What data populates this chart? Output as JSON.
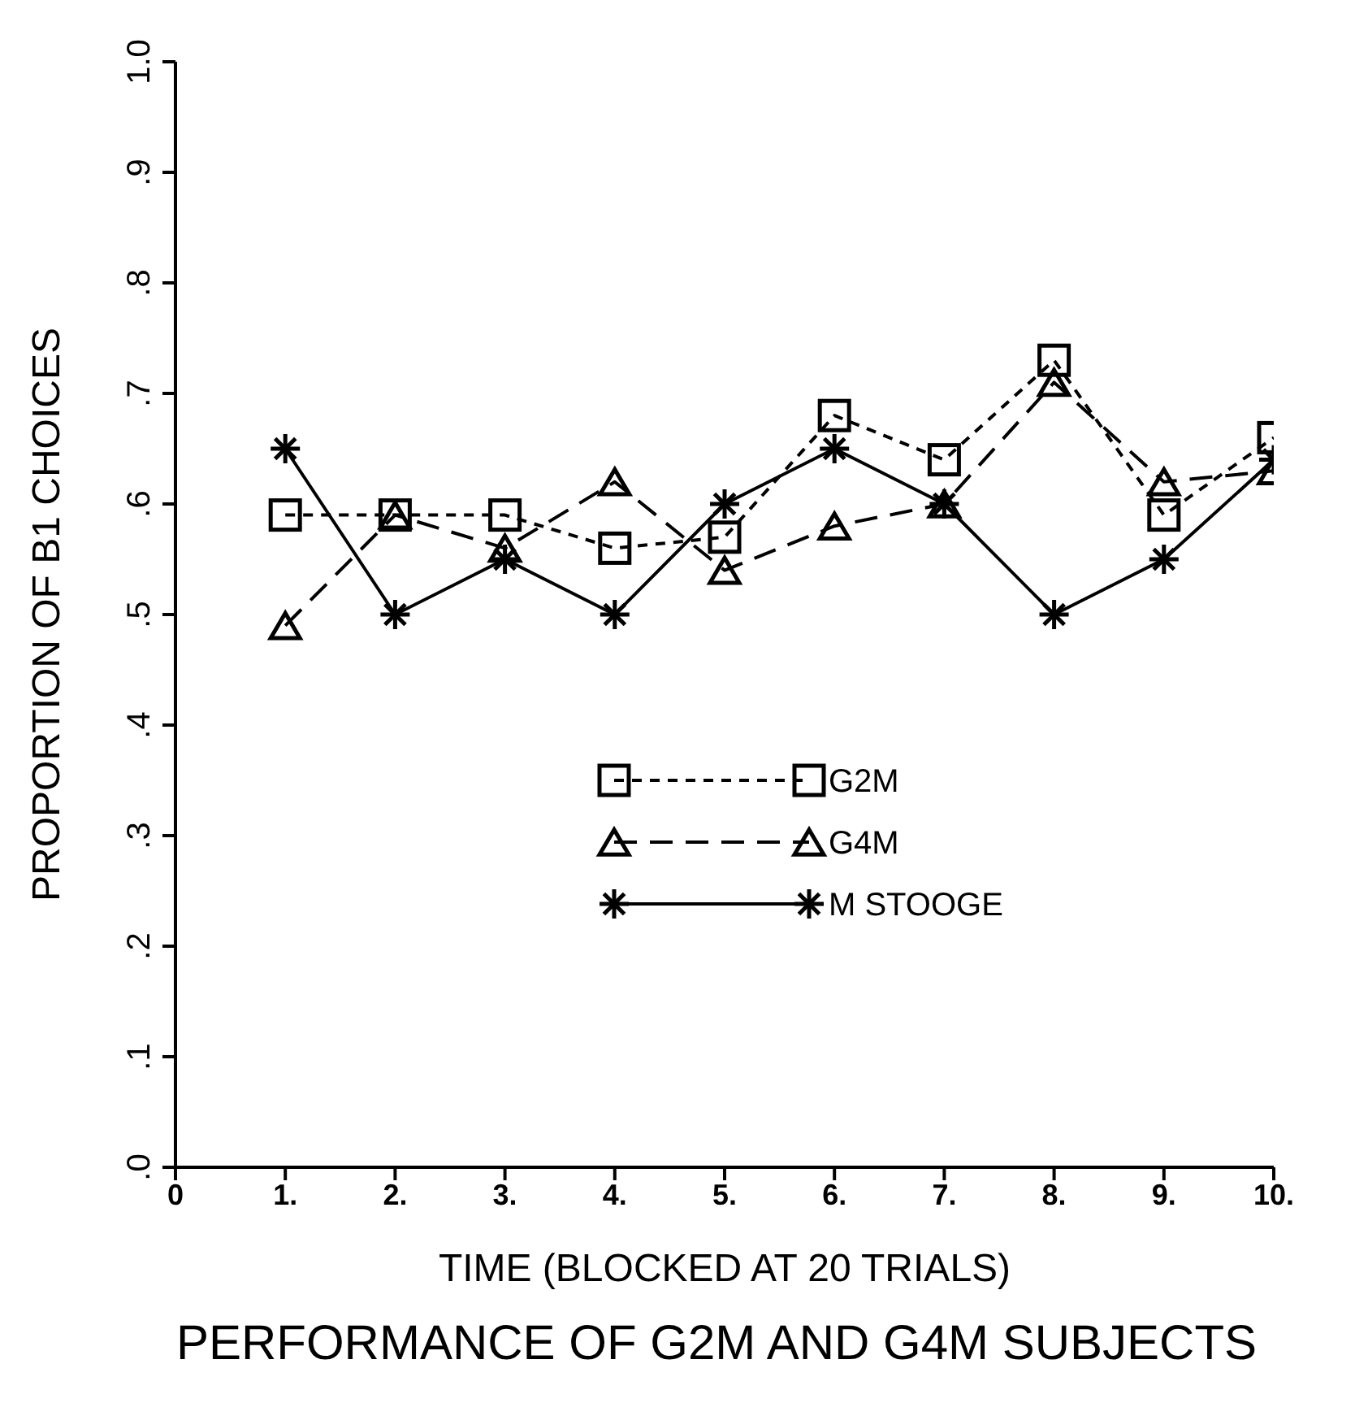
{
  "chart_data": {
    "type": "line",
    "title": "PERFORMANCE OF G2M AND G4M SUBJECTS",
    "xlabel": "TIME (BLOCKED AT 20 TRIALS)",
    "ylabel": "PROPORTION OF B1 CHOICES",
    "x": [
      1,
      2,
      3,
      4,
      5,
      6,
      7,
      8,
      9,
      10
    ],
    "series": [
      {
        "name": "G2M",
        "color": "#000000",
        "marker": "square",
        "line_style": "dotted",
        "values": [
          0.59,
          0.59,
          0.59,
          0.56,
          0.57,
          0.68,
          0.64,
          0.73,
          0.59,
          0.66
        ]
      },
      {
        "name": "G4M",
        "color": "#000000",
        "marker": "triangle",
        "line_style": "dashed",
        "values": [
          0.49,
          0.59,
          0.56,
          0.62,
          0.54,
          0.58,
          0.6,
          0.71,
          0.62,
          0.63
        ]
      },
      {
        "name": "M STOOGE",
        "color": "#000000",
        "marker": "cross",
        "line_style": "solid",
        "values": [
          0.65,
          0.5,
          0.55,
          0.5,
          0.6,
          0.65,
          0.6,
          0.5,
          0.55,
          0.64
        ]
      }
    ],
    "xlim": [
      0,
      10
    ],
    "xticks": [
      0,
      {
        "value": 1,
        "label": "1."
      },
      {
        "value": 2,
        "label": "2."
      },
      {
        "value": 3,
        "label": "3."
      },
      {
        "value": 4,
        "label": "4."
      },
      {
        "value": 5,
        "label": "5."
      },
      {
        "value": 6,
        "label": "6."
      },
      {
        "value": 7,
        "label": "7."
      },
      {
        "value": 8,
        "label": "8."
      },
      {
        "value": 9,
        "label": "9."
      },
      {
        "value": 10,
        "label": "10."
      }
    ],
    "ylim": [
      0,
      1
    ],
    "yticks": [
      {
        "value": 0,
        "label": ".0"
      },
      {
        "value": 0.1,
        "label": ".1"
      },
      {
        "value": 0.2,
        "label": ".2"
      },
      {
        "value": 0.3,
        "label": ".3"
      },
      {
        "value": 0.4,
        "label": ".4"
      },
      {
        "value": 0.5,
        "label": ".5"
      },
      {
        "value": 0.6,
        "label": ".6"
      },
      {
        "value": 0.7,
        "label": ".7"
      },
      {
        "value": 0.8,
        "label": ".8"
      },
      {
        "value": 0.9,
        "label": ".9"
      },
      {
        "value": 1,
        "label": "1.0"
      }
    ],
    "grid": false,
    "legend": "center"
  }
}
